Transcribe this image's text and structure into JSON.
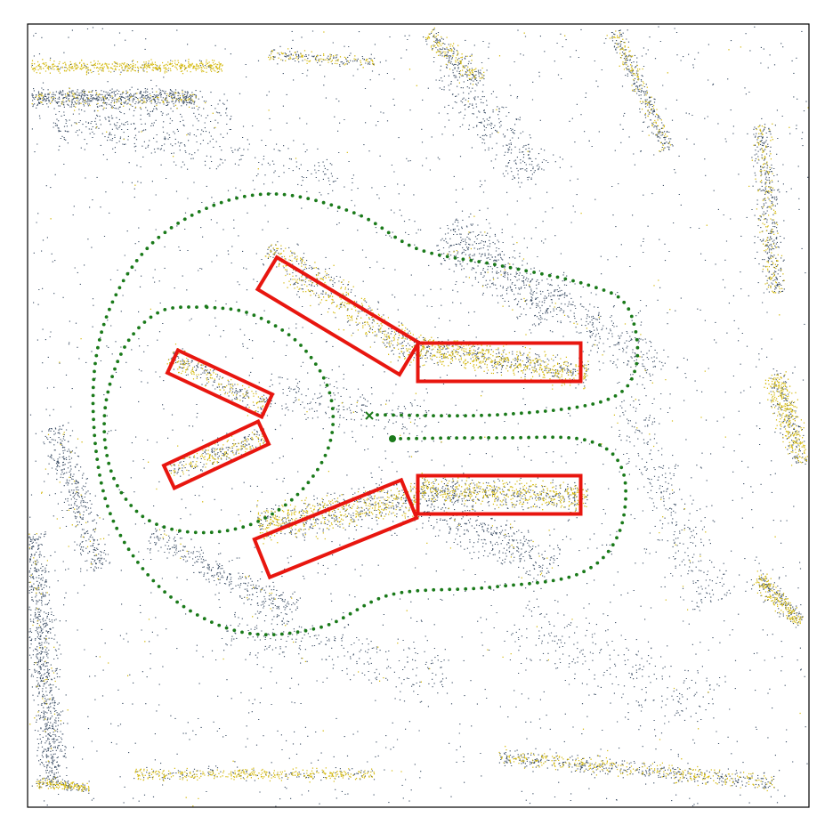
{
  "colors": {
    "background": "#ffffff",
    "frame": "#000000",
    "lidar_dark": "#3d4f66",
    "lidar_yellow": "#d6bb12",
    "detection_box": "#e8160f",
    "trajectory": "#1a7a1a"
  },
  "legend": "none",
  "axes_visible": false,
  "markers": {
    "trajectory_start": "circle",
    "trajectory_end": "cross"
  }
}
